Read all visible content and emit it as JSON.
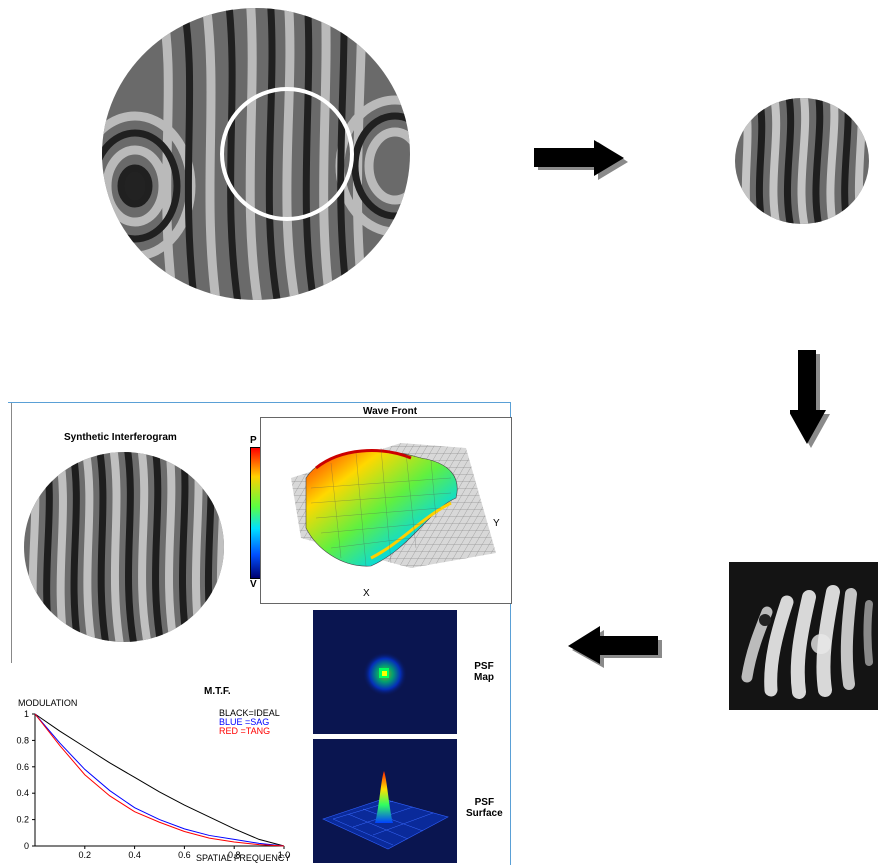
{
  "panel": {
    "synthetic_title": "Synthetic Interferogram",
    "colorbar_top": "P",
    "colorbar_bottom": "V",
    "wavefront_title": "Wave Front",
    "axis_x": "X",
    "axis_y": "Y",
    "psf_map_label_1": "PSF",
    "psf_map_label_2": "Map",
    "psf_surface_label_1": "PSF",
    "psf_surface_label_2": "Surface"
  },
  "mtf": {
    "title": "M.T.F.",
    "ylabel": "MODULATION",
    "xlabel": "SPATIAL FREQUENCY",
    "legend": [
      {
        "text": "BLACK=IDEAL",
        "color": "#000000"
      },
      {
        "text": "BLUE  =SAG",
        "color": "#0000ff"
      },
      {
        "text": "RED   =TANG",
        "color": "#ff0000"
      }
    ],
    "y_ticks": [
      "1",
      "0.8",
      "0.6",
      "0.4",
      "0.2",
      "0"
    ],
    "x_ticks": [
      "0.2",
      "0.4",
      "0.6",
      "0.8",
      "1.0"
    ]
  },
  "chart_data": {
    "type": "line",
    "title": "M.T.F.",
    "xlabel": "SPATIAL FREQUENCY",
    "ylabel": "MODULATION",
    "xlim": [
      0,
      1.0
    ],
    "ylim": [
      0,
      1
    ],
    "x": [
      0,
      0.1,
      0.2,
      0.3,
      0.4,
      0.5,
      0.6,
      0.7,
      0.8,
      0.9,
      1.0
    ],
    "series": [
      {
        "name": "IDEAL",
        "color": "#000000",
        "values": [
          1.0,
          0.87,
          0.75,
          0.63,
          0.52,
          0.41,
          0.31,
          0.22,
          0.13,
          0.05,
          0.0
        ]
      },
      {
        "name": "SAG",
        "color": "#0000ff",
        "values": [
          1.0,
          0.78,
          0.58,
          0.42,
          0.29,
          0.2,
          0.13,
          0.08,
          0.05,
          0.02,
          0.0
        ]
      },
      {
        "name": "TANG",
        "color": "#ff0000",
        "values": [
          1.0,
          0.76,
          0.54,
          0.38,
          0.26,
          0.18,
          0.11,
          0.06,
          0.03,
          0.01,
          0.0
        ]
      }
    ]
  },
  "colors": {
    "fringe_dark": "#1e1e1e",
    "fringe_light": "#b8b8b8",
    "arrow": "#000000",
    "arrow_shadow": "#8a8a8a",
    "panel_border": "#5aa0d6"
  }
}
